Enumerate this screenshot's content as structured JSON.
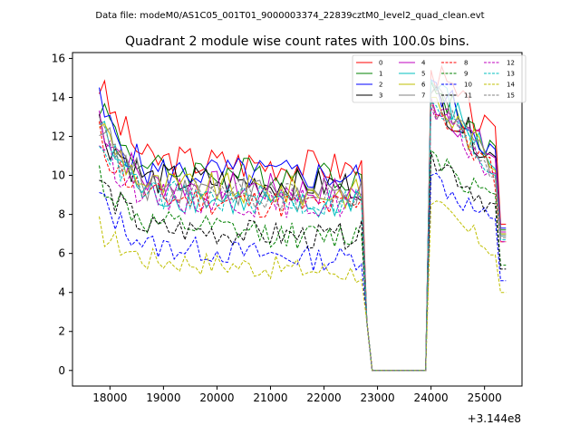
{
  "header": {
    "suptitle": "Data file: modeM0/AS1C05_001T01_9000003374_22839cztM0_level2_quad_clean.evt",
    "title": "Quadrant 2 module wise count rates with 100.0s bins.",
    "x_offset": "+3.144e8"
  },
  "chart_data": {
    "type": "line",
    "title": "Quadrant 2 module wise count rates with 100.0s bins.",
    "xlabel": "",
    "ylabel": "",
    "x_offset": 314400000,
    "xlim": [
      17300,
      25700
    ],
    "ylim": [
      -0.8,
      16.3
    ],
    "xticks": [
      18000,
      19000,
      20000,
      21000,
      22000,
      23000,
      24000,
      25000
    ],
    "xtick_labels": [
      "18000",
      "19000",
      "20000",
      "21000",
      "22000",
      "23000",
      "24000",
      "25000"
    ],
    "yticks": [
      0,
      2,
      4,
      6,
      8,
      10,
      12,
      14,
      16
    ],
    "ytick_labels": [
      "0",
      "2",
      "4",
      "6",
      "8",
      "10",
      "12",
      "14",
      "16"
    ],
    "grid": false,
    "legend_position": "top-right",
    "legend_columns": 4,
    "gap_segment": {
      "x": [
        22800,
        22900,
        23900
      ],
      "y": [
        2.5,
        0,
        0
      ]
    },
    "series": [
      {
        "name": "0",
        "color": "#ff0000",
        "dash": "solid",
        "start": 14.8,
        "knee": 10.8,
        "plateau": 10.5,
        "pre_gap": 10.3,
        "peak": 15.4,
        "end": 11.8,
        "final": 7.5
      },
      {
        "name": "1",
        "color": "#008000",
        "dash": "solid",
        "start": 14.0,
        "knee": 10.3,
        "plateau": 10.0,
        "pre_gap": 10.0,
        "peak": 14.8,
        "end": 11.0,
        "final": 7.2
      },
      {
        "name": "2",
        "color": "#0000ff",
        "dash": "solid",
        "start": 13.7,
        "knee": 10.2,
        "plateau": 10.0,
        "pre_gap": 9.9,
        "peak": 14.9,
        "end": 11.0,
        "final": 7.3
      },
      {
        "name": "3",
        "color": "#000000",
        "dash": "solid",
        "start": 12.7,
        "knee": 9.8,
        "plateau": 9.5,
        "pre_gap": 9.5,
        "peak": 14.2,
        "end": 10.8,
        "final": 7.0
      },
      {
        "name": "4",
        "color": "#bf00bf",
        "dash": "solid",
        "start": 13.2,
        "knee": 9.6,
        "plateau": 9.2,
        "pre_gap": 9.2,
        "peak": 14.0,
        "end": 10.9,
        "final": 7.1
      },
      {
        "name": "5",
        "color": "#00bfbf",
        "dash": "solid",
        "start": 12.8,
        "knee": 9.0,
        "plateau": 8.3,
        "pre_gap": 9.0,
        "peak": 14.9,
        "end": 10.5,
        "final": 6.9
      },
      {
        "name": "6",
        "color": "#bfbf00",
        "dash": "solid",
        "start": 13.0,
        "knee": 9.5,
        "plateau": 9.1,
        "pre_gap": 9.1,
        "peak": 14.0,
        "end": 10.6,
        "final": 7.0
      },
      {
        "name": "7",
        "color": "#808080",
        "dash": "solid",
        "start": 12.9,
        "knee": 9.5,
        "plateau": 9.0,
        "pre_gap": 9.0,
        "peak": 14.2,
        "end": 10.5,
        "final": 6.9
      },
      {
        "name": "8",
        "color": "#ff0000",
        "dash": "dashed",
        "start": 12.0,
        "knee": 8.9,
        "plateau": 8.4,
        "pre_gap": 8.4,
        "peak": 13.8,
        "end": 10.0,
        "final": 6.6
      },
      {
        "name": "9",
        "color": "#008000",
        "dash": "dashed",
        "start": 10.1,
        "knee": 7.5,
        "plateau": 6.8,
        "pre_gap": 7.0,
        "peak": 11.3,
        "end": 8.5,
        "final": 5.4
      },
      {
        "name": "10",
        "color": "#0000ff",
        "dash": "dashed",
        "start": 9.0,
        "knee": 6.4,
        "plateau": 5.7,
        "pre_gap": 5.8,
        "peak": 10.0,
        "end": 7.4,
        "final": 4.6
      },
      {
        "name": "11",
        "color": "#000000",
        "dash": "dashed",
        "start": 9.9,
        "knee": 7.3,
        "plateau": 6.8,
        "pre_gap": 7.0,
        "peak": 11.2,
        "end": 8.3,
        "final": 5.2
      },
      {
        "name": "12",
        "color": "#bf00bf",
        "dash": "dashed",
        "start": 12.0,
        "knee": 8.9,
        "plateau": 8.5,
        "pre_gap": 8.7,
        "peak": 13.5,
        "end": 10.0,
        "final": 6.6
      },
      {
        "name": "13",
        "color": "#00bfbf",
        "dash": "dashed",
        "start": 12.3,
        "knee": 9.0,
        "plateau": 8.6,
        "pre_gap": 8.8,
        "peak": 13.8,
        "end": 10.1,
        "final": 6.7
      },
      {
        "name": "14",
        "color": "#bfbf00",
        "dash": "dashed",
        "start": 7.3,
        "knee": 5.7,
        "plateau": 5.1,
        "pre_gap": 5.0,
        "peak": 8.5,
        "end": 6.1,
        "final": 4.0
      },
      {
        "name": "15",
        "color": "#808080",
        "dash": "dashed",
        "start": 12.5,
        "knee": 9.2,
        "plateau": 8.8,
        "pre_gap": 9.0,
        "peak": 13.9,
        "end": 10.3,
        "final": 6.8
      }
    ]
  }
}
